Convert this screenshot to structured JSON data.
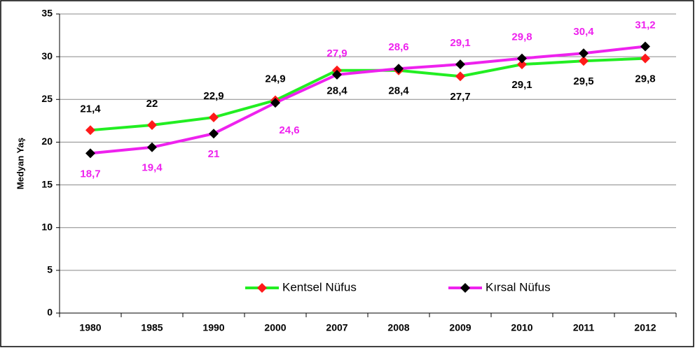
{
  "chart_data": {
    "type": "line",
    "y_label": "Medyan Yaş",
    "categories": [
      "1980",
      "1985",
      "1990",
      "2000",
      "2007",
      "2008",
      "2009",
      "2010",
      "2011",
      "2012"
    ],
    "series": [
      {
        "name": "Kentsel Nüfus",
        "color": "#22ee22",
        "marker_color": "#ff1a1a",
        "label_color": "#000000",
        "values": [
          21.4,
          22,
          22.9,
          24.9,
          28.4,
          28.4,
          27.7,
          29.1,
          29.5,
          29.8
        ],
        "value_labels": [
          "21,4",
          "22",
          "22,9",
          "24,9",
          "28,4",
          "28,4",
          "27,7",
          "29,1",
          "29,5",
          "29,8"
        ]
      },
      {
        "name": "Kırsal Nüfus",
        "color": "#ee22ee",
        "marker_color": "#000000",
        "label_color": "#ee22ee",
        "values": [
          18.7,
          19.4,
          21,
          24.6,
          27.9,
          28.6,
          29.1,
          29.8,
          30.4,
          31.2
        ],
        "value_labels": [
          "18,7",
          "19,4",
          "21",
          "24,6",
          "27,9",
          "28,6",
          "29,1",
          "29,8",
          "30,4",
          "31,2"
        ]
      }
    ],
    "ylim": [
      0,
      35
    ],
    "yticks": [
      0,
      5,
      10,
      15,
      20,
      25,
      30,
      35
    ],
    "grid": true
  }
}
